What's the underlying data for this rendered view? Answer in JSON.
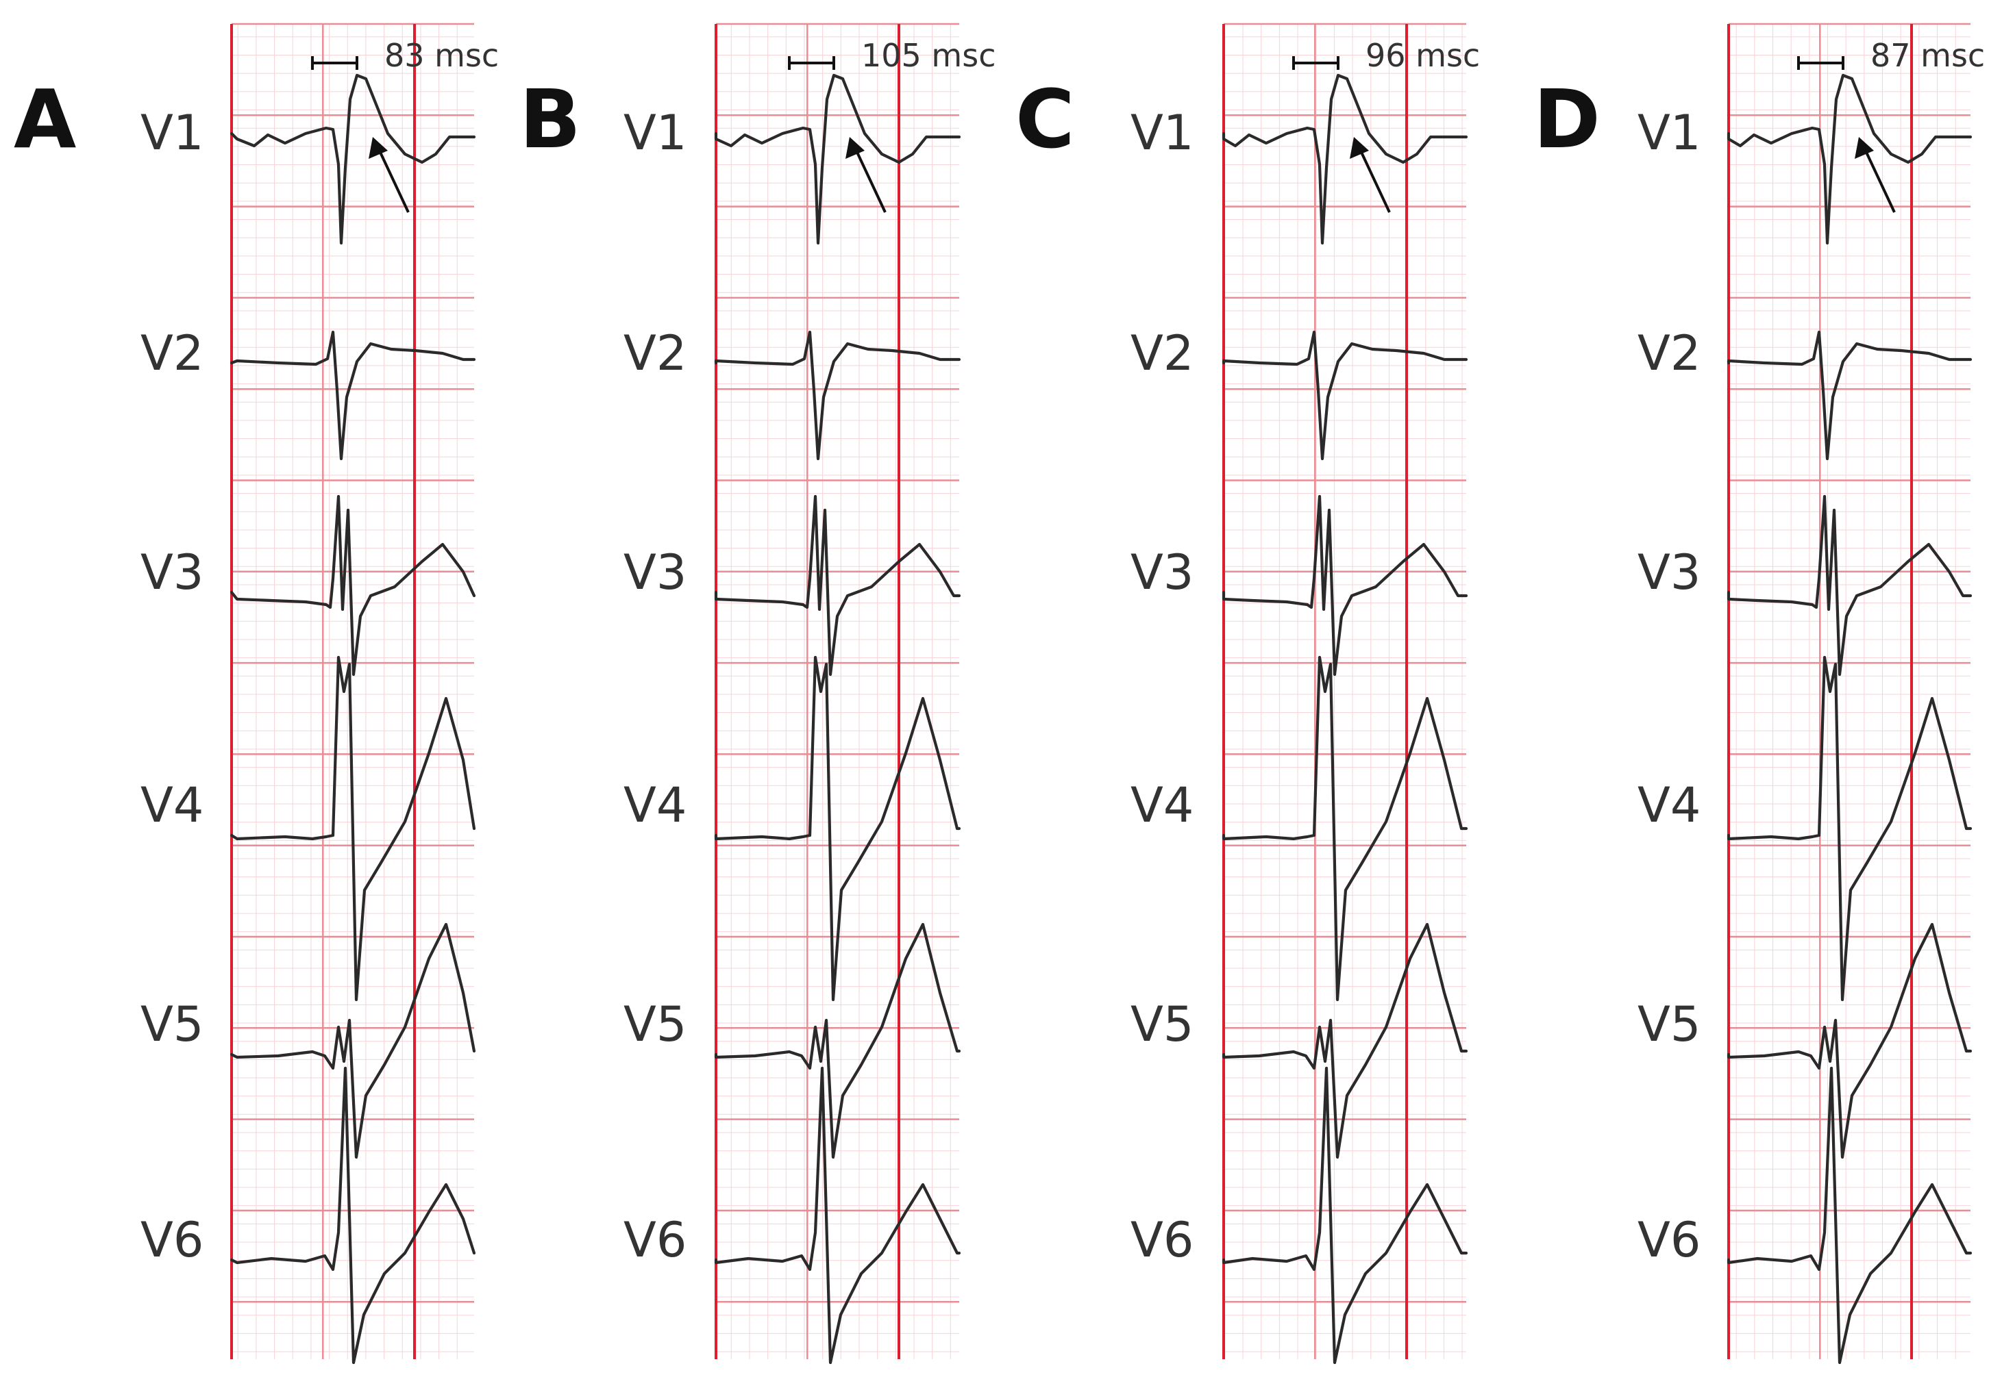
{
  "figure": {
    "leads": [
      "V1",
      "V2",
      "V3",
      "V4",
      "V5",
      "V6"
    ],
    "panels": [
      {
        "letter": "A",
        "measurement": "83 msc"
      },
      {
        "letter": "B",
        "measurement": "105 msc"
      },
      {
        "letter": "C",
        "measurement": "96 msc"
      },
      {
        "letter": "D",
        "measurement": "87 msc"
      }
    ],
    "colors": {
      "grid_fine": "#f7d3d8",
      "grid_major": "#ea8c94",
      "grid_axis": "#de1d2e",
      "trace": "#2a2a2a",
      "text": "#333333"
    }
  }
}
